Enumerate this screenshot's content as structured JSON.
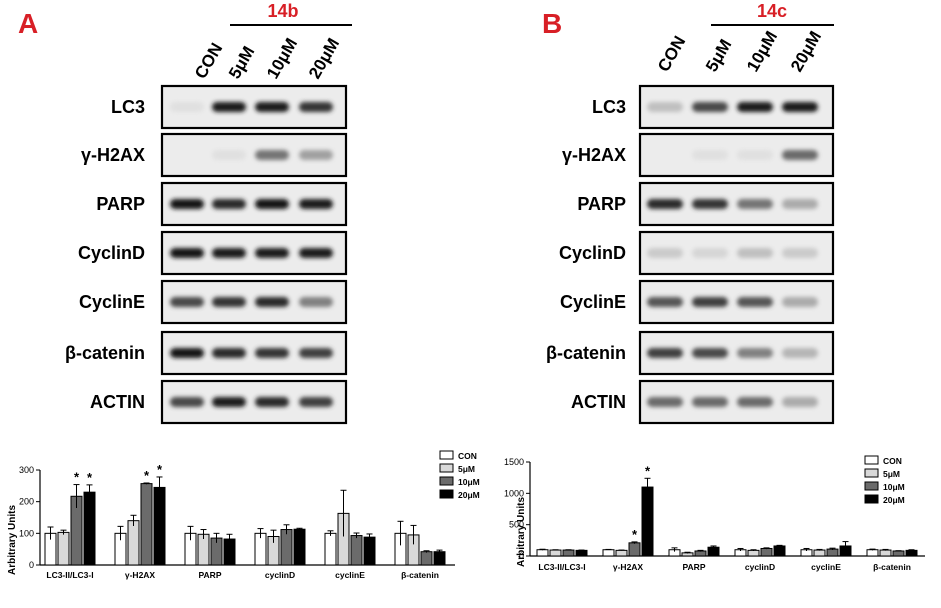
{
  "panels": [
    {
      "letter": "A",
      "compound": "14b",
      "lanes": [
        "CON",
        "5μM",
        "10μM",
        "20μM"
      ],
      "blots": [
        {
          "label": "LC3",
          "intensity": [
            0.05,
            0.95,
            0.95,
            0.85
          ]
        },
        {
          "label": "γ-H2AX",
          "intensity": [
            0.0,
            0.05,
            0.55,
            0.35
          ]
        },
        {
          "label": "PARP",
          "intensity": [
            1.0,
            0.9,
            1.0,
            0.95
          ]
        },
        {
          "label": "CyclinD",
          "intensity": [
            1.0,
            0.95,
            0.95,
            0.95
          ]
        },
        {
          "label": "CyclinE",
          "intensity": [
            0.75,
            0.85,
            0.9,
            0.5
          ]
        },
        {
          "label": "β-catenin",
          "intensity": [
            1.0,
            0.9,
            0.85,
            0.8
          ]
        },
        {
          "label": "ACTIN",
          "intensity": [
            0.75,
            0.95,
            0.9,
            0.8
          ]
        }
      ]
    },
    {
      "letter": "B",
      "compound": "14c",
      "lanes": [
        "CON",
        "5μM",
        "10μM",
        "20μM"
      ],
      "blots": [
        {
          "label": "LC3",
          "intensity": [
            0.2,
            0.75,
            0.95,
            0.95
          ]
        },
        {
          "label": "γ-H2AX",
          "intensity": [
            0.0,
            0.05,
            0.05,
            0.6
          ]
        },
        {
          "label": "PARP",
          "intensity": [
            0.9,
            0.85,
            0.55,
            0.3
          ]
        },
        {
          "label": "CyclinD",
          "intensity": [
            0.15,
            0.1,
            0.2,
            0.15
          ]
        },
        {
          "label": "CyclinE",
          "intensity": [
            0.7,
            0.8,
            0.7,
            0.3
          ]
        },
        {
          "label": "β-catenin",
          "intensity": [
            0.8,
            0.75,
            0.5,
            0.25
          ]
        },
        {
          "label": "ACTIN",
          "intensity": [
            0.6,
            0.6,
            0.6,
            0.3
          ]
        }
      ]
    }
  ],
  "chart_data": [
    {
      "type": "bar",
      "panel": "A",
      "title": "",
      "xlabel": "",
      "ylabel": "Arbitrary Units",
      "ylim": [
        0,
        300
      ],
      "yticks": [
        0,
        100,
        200,
        300
      ],
      "categories": [
        "LC3-II/LC3-I",
        "γ-H2AX",
        "PARP",
        "cyclinD",
        "cyclinE",
        "β-catenin"
      ],
      "legend_position": "top-right",
      "series": [
        {
          "name": "CON",
          "color": "#ffffff",
          "values": [
            100,
            100,
            100,
            100,
            100,
            100
          ],
          "errors": [
            20,
            22,
            22,
            15,
            8,
            38
          ],
          "sig": [
            false,
            false,
            false,
            false,
            false,
            false
          ]
        },
        {
          "name": "5μM",
          "color": "#d9d9d9",
          "values": [
            103,
            140,
            97,
            90,
            163,
            95
          ],
          "errors": [
            7,
            17,
            15,
            20,
            73,
            30
          ],
          "sig": [
            false,
            false,
            false,
            false,
            false,
            false
          ]
        },
        {
          "name": "10μM",
          "color": "#6b6b6b",
          "values": [
            217,
            257,
            85,
            112,
            93,
            42
          ],
          "errors": [
            37,
            2,
            15,
            15,
            8,
            3
          ],
          "sig": [
            true,
            true,
            false,
            false,
            false,
            false
          ]
        },
        {
          "name": "20μM",
          "color": "#000000",
          "values": [
            230,
            245,
            82,
            113,
            88,
            42
          ],
          "errors": [
            23,
            33,
            15,
            3,
            10,
            5
          ],
          "sig": [
            true,
            true,
            false,
            false,
            false,
            false
          ]
        }
      ],
      "sig_marker": "*"
    },
    {
      "type": "bar",
      "panel": "B",
      "title": "",
      "xlabel": "",
      "ylabel": "Arbitrary Units",
      "ylim": [
        0,
        1500
      ],
      "yticks": [
        0,
        500,
        1000,
        1500
      ],
      "categories": [
        "LC3-II/LC3-I",
        "γ-H2AX",
        "PARP",
        "cyclinD",
        "cyclinE",
        "β-catenin"
      ],
      "legend_position": "top-right",
      "series": [
        {
          "name": "CON",
          "color": "#ffffff",
          "values": [
            100,
            100,
            100,
            100,
            100,
            100
          ],
          "errors": [
            8,
            5,
            30,
            20,
            20,
            10
          ],
          "sig": [
            false,
            false,
            false,
            false,
            false,
            false
          ]
        },
        {
          "name": "5μM",
          "color": "#d9d9d9",
          "values": [
            95,
            90,
            50,
            90,
            95,
            95
          ],
          "errors": [
            5,
            5,
            10,
            10,
            10,
            10
          ],
          "sig": [
            false,
            false,
            false,
            false,
            false,
            false
          ]
        },
        {
          "name": "10μM",
          "color": "#6b6b6b",
          "values": [
            95,
            210,
            80,
            120,
            110,
            80
          ],
          "errors": [
            5,
            15,
            10,
            10,
            15,
            5
          ],
          "sig": [
            false,
            true,
            false,
            false,
            false,
            false
          ]
        },
        {
          "name": "20μM",
          "color": "#000000",
          "values": [
            90,
            1100,
            140,
            160,
            160,
            90
          ],
          "errors": [
            5,
            140,
            20,
            10,
            70,
            10
          ],
          "sig": [
            false,
            true,
            false,
            false,
            false,
            false
          ]
        }
      ],
      "sig_marker": "*"
    }
  ]
}
